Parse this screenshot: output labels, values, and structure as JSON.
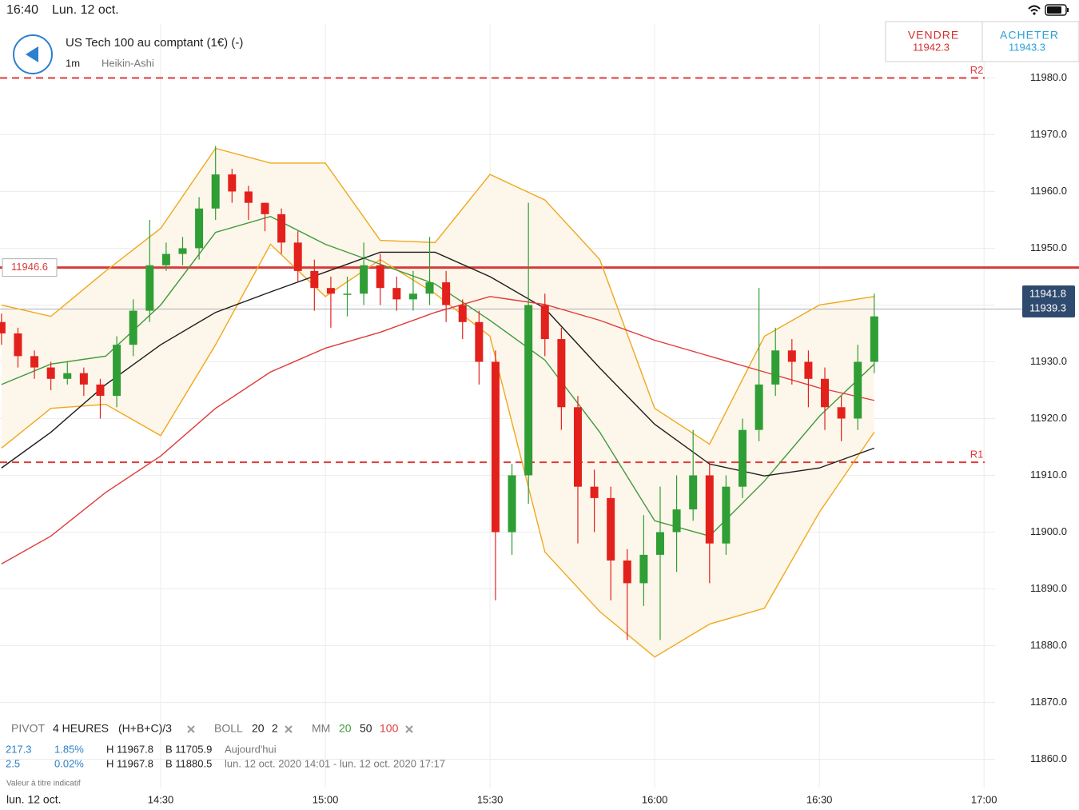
{
  "status_bar": {
    "time": "16:40",
    "date": "Lun. 12 oct."
  },
  "header": {
    "title": "US Tech 100 au comptant (1€) (-)",
    "interval": "1m",
    "chart_style": "Heikin-Ashi"
  },
  "quote": {
    "sell_label": "VENDRE",
    "sell_price": "11942.3",
    "buy_label": "ACHETER",
    "buy_price": "11943.3"
  },
  "chart_data": {
    "type": "candlestick",
    "x": [
      1,
      4,
      7,
      10,
      13,
      16,
      19,
      22,
      25,
      28,
      31,
      34,
      37,
      40,
      43,
      46,
      49,
      52,
      55,
      58,
      61,
      64,
      67,
      70,
      73,
      76,
      79,
      82,
      85,
      88,
      91,
      94,
      97,
      100,
      103,
      106,
      109,
      112,
      115,
      118,
      121,
      124,
      127,
      130,
      133,
      136,
      139,
      142,
      145,
      148,
      151,
      154,
      157,
      160
    ],
    "open": [
      11937,
      11935,
      11931,
      11929,
      11927,
      11928,
      11926,
      11924,
      11933,
      11939,
      11947,
      11949,
      11950,
      11957,
      11963,
      11960,
      11958,
      11956,
      11951,
      11946,
      11943,
      11942,
      11942,
      11947,
      11943,
      11941,
      11942,
      11944,
      11940,
      11937,
      11930,
      11900,
      11910,
      11940,
      11934,
      11922,
      11908,
      11906,
      11895,
      11891,
      11896,
      11900,
      11904,
      11910,
      11898,
      11908,
      11918,
      11926,
      11932,
      11930,
      11927,
      11922,
      11920,
      11930
    ],
    "high": [
      11938.5,
      11936,
      11932,
      11930,
      11930,
      11929,
      11927,
      11934.5,
      11941,
      11955,
      11951,
      11952,
      11959,
      11968,
      11964,
      11961,
      11958,
      11957,
      11953,
      11948,
      11945,
      11945,
      11951,
      11949,
      11945,
      11946,
      11952,
      11946,
      11941,
      11939,
      11932,
      11912,
      11958,
      11942,
      11936,
      11924,
      11911,
      11908,
      11897,
      11903,
      11908,
      11910,
      11918,
      11912,
      11910,
      11920,
      11943,
      11936,
      11934,
      11932,
      11929,
      11924,
      11933,
      11942
    ],
    "low": [
      11933,
      11929,
      11927,
      11925,
      11926,
      11924,
      11920,
      11922,
      11931,
      11937,
      11946,
      11947,
      11948,
      11955,
      11958,
      11955,
      11953,
      11949,
      11944,
      11939,
      11936,
      11938,
      11940,
      11940,
      11939,
      11939,
      11940,
      11937,
      11934,
      11926,
      11888,
      11896,
      11905,
      11931,
      11918,
      11898,
      11900,
      11888,
      11881,
      11887,
      11881,
      11893,
      11902,
      11891,
      11896,
      11906,
      11916,
      11924,
      11926,
      11922,
      11918,
      11916,
      11918,
      11928
    ],
    "close": [
      11935,
      11931,
      11929,
      11927,
      11928,
      11926,
      11924,
      11933,
      11939,
      11947,
      11949,
      11950,
      11957,
      11963,
      11960,
      11958,
      11956,
      11951,
      11946,
      11943,
      11942,
      11942,
      11947,
      11943,
      11941,
      11942,
      11944,
      11940,
      11937,
      11930,
      11900,
      11910,
      11940,
      11934,
      11922,
      11908,
      11906,
      11895,
      11891,
      11896,
      11900,
      11904,
      11910,
      11898,
      11908,
      11918,
      11926,
      11932,
      11930,
      11927,
      11922,
      11920,
      11930,
      11938
    ],
    "up_color": "#2f9e35",
    "down_color": "#e3211c",
    "line_x": [
      1,
      10,
      20,
      30,
      40,
      50,
      60,
      70,
      80,
      90,
      100,
      110,
      120,
      130,
      140,
      150,
      160
    ],
    "lines": [
      {
        "color": "#f0a81c",
        "values": [
          11940,
          11938,
          11946,
          11953.5,
          11967.6,
          11965,
          11965,
          11951.4,
          11951,
          11963,
          11958.5,
          11948,
          11921.8,
          11915.5,
          11934.5,
          11940,
          11941.5
        ]
      },
      {
        "color": "#f0a81c",
        "values": [
          11914.8,
          11921.8,
          11922.5,
          11917,
          11933,
          11950.7,
          11941.5,
          11948,
          11942,
          11934.5,
          11896.5,
          11886,
          11878,
          11883.8,
          11886.6,
          11903.5,
          11917.6
        ]
      },
      {
        "color": "#3f9a3c",
        "values": [
          11926,
          11929.6,
          11931,
          11940,
          11952.8,
          11955.6,
          11950.7,
          11947.2,
          11943.7,
          11937.3,
          11930.3,
          11917.6,
          11902,
          11899.3,
          11909,
          11920.4,
          11929.6
        ]
      },
      {
        "color": "#1c1c1c",
        "values": [
          11911.3,
          11917.6,
          11926,
          11933,
          11938.7,
          11942.3,
          11945.8,
          11949.3,
          11949.3,
          11945,
          11939.4,
          11928.9,
          11919,
          11912,
          11909.9,
          11911.3,
          11914.8
        ]
      },
      {
        "color": "#e03a3a",
        "values": [
          11894.4,
          11899.3,
          11907,
          11913.4,
          11921.8,
          11928.2,
          11932.4,
          11935.2,
          11938.7,
          11941.5,
          11940.1,
          11937.3,
          11933.8,
          11931,
          11928.2,
          11925.4,
          11923.2
        ]
      }
    ],
    "band_fill": "#fdf6ea",
    "levels": [
      {
        "name": "R2",
        "value": 11980,
        "color": "#e03a3a",
        "style": "dashed"
      },
      {
        "name": "R1",
        "value": 11912.3,
        "color": "#e03a3a",
        "style": "dashed"
      },
      {
        "value": 11946.6,
        "color": "#d63c3c",
        "style": "solid"
      }
    ],
    "price_tags": [
      11941.8,
      11939.3
    ],
    "xlim": [
      0.73,
      197.3
    ],
    "ylim": [
      11855,
      11989.5
    ],
    "xticks": [
      {
        "value": 30,
        "label": "14:30"
      },
      {
        "value": 60,
        "label": "15:00"
      },
      {
        "value": 90,
        "label": "15:30"
      },
      {
        "value": 120,
        "label": "16:00"
      },
      {
        "value": 150,
        "label": "16:30"
      },
      {
        "value": 180,
        "label": "17:00"
      }
    ],
    "yticks": [
      {
        "value": 11860,
        "label": "11860.0"
      },
      {
        "value": 11870,
        "label": "11870.0"
      },
      {
        "value": 11880,
        "label": "11880.0"
      },
      {
        "value": 11890,
        "label": "11890.0"
      },
      {
        "value": 11900,
        "label": "11900.0"
      },
      {
        "value": 11910,
        "label": "11910.0"
      },
      {
        "value": 11920,
        "label": "11920.0"
      },
      {
        "value": 11930,
        "label": "11930.0"
      },
      {
        "value": 11940,
        "label": "11940.0"
      },
      {
        "value": 11950,
        "label": "11950.0"
      },
      {
        "value": 11960,
        "label": "11960.0"
      },
      {
        "value": 11970,
        "label": "11970.0"
      },
      {
        "value": 11980,
        "label": "11980.0"
      }
    ],
    "grid": true
  },
  "indicators": {
    "pivot": [
      "PIVOT",
      "4 HEURES",
      "(H+B+C)/3"
    ],
    "boll": [
      "BOLL",
      "20",
      "2"
    ],
    "mm": [
      "MM",
      "20",
      "50",
      "100"
    ]
  },
  "stats": {
    "rows": [
      [
        "217.3",
        "1.85%",
        "H 11967.8",
        "B 11705.9",
        "Aujourd'hui"
      ],
      [
        "2.5",
        "0.02%",
        "H 11967.8",
        "B 11880.5",
        "lun. 12 oct. 2020 14:01 - lun. 12 oct. 2020 17:17"
      ]
    ]
  },
  "footer": {
    "disclaimer": "Valeur à titre indicatif",
    "date": "lun. 12 oct."
  }
}
